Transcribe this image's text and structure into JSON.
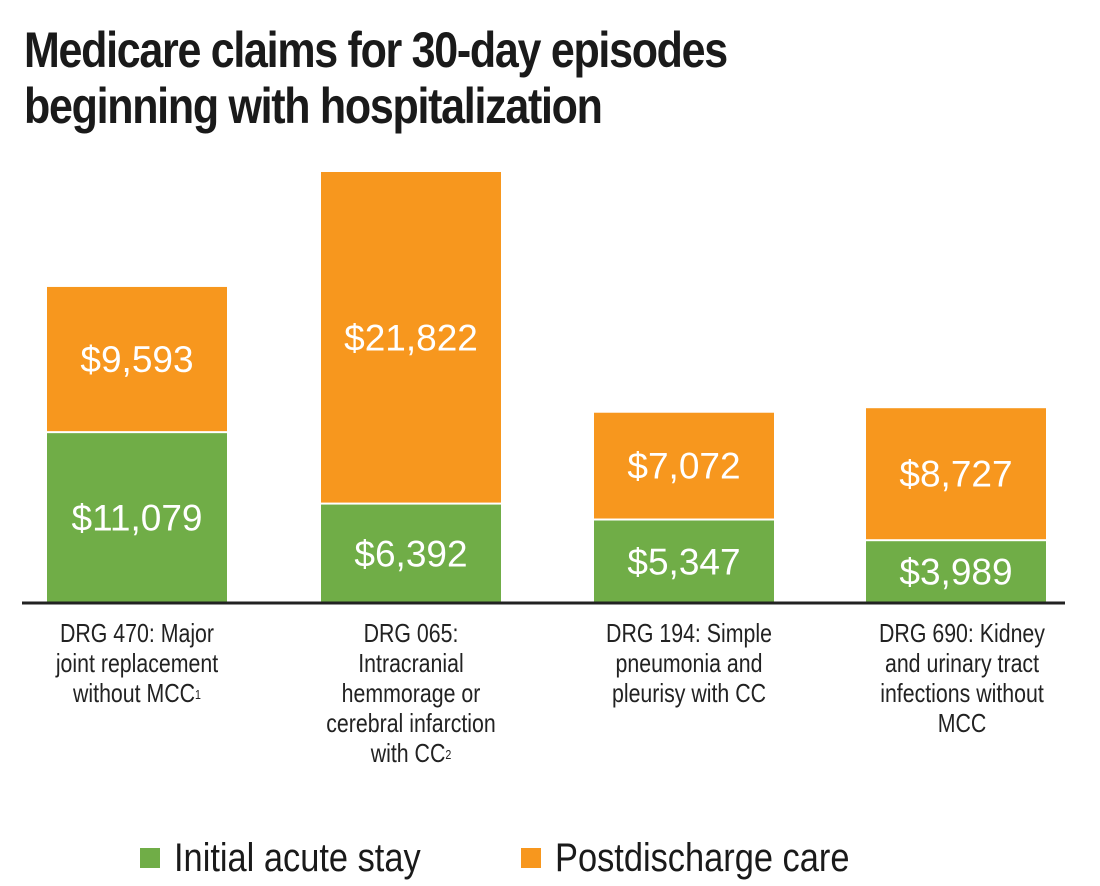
{
  "chart_data": {
    "type": "bar",
    "stacked": true,
    "title_lines": [
      "Medicare claims for 30-day episodes",
      "beginning with hospitalization"
    ],
    "categories": [
      {
        "lines": [
          "DRG 470: Major",
          "joint replacement",
          "without MCC"
        ],
        "sup": "1"
      },
      {
        "lines": [
          "DRG 065:",
          "Intracranial",
          "hemmorage or",
          "cerebral infarction",
          "with CC"
        ],
        "sup": "2"
      },
      {
        "lines": [
          "DRG 194: Simple",
          "pneumonia and",
          "pleurisy with CC"
        ],
        "sup": ""
      },
      {
        "lines": [
          "DRG 690: Kidney",
          "and urinary tract",
          "infections without",
          "MCC"
        ],
        "sup": ""
      }
    ],
    "series": [
      {
        "name": "Initial acute stay",
        "color": "#70ad47",
        "values": [
          11079,
          6392,
          5347,
          3989
        ],
        "labels": [
          "$11,079",
          "$6,392",
          "$5,347",
          "$3,989"
        ]
      },
      {
        "name": "Postdischarge care",
        "color": "#f7971e",
        "values": [
          9593,
          21822,
          7072,
          8727
        ],
        "labels": [
          "$9,593",
          "$21,822",
          "$7,072",
          "$8,727"
        ]
      }
    ],
    "xlabel": "",
    "ylabel": "",
    "ylim": [
      0,
      28214
    ],
    "grid": false,
    "legend": "bottom"
  }
}
